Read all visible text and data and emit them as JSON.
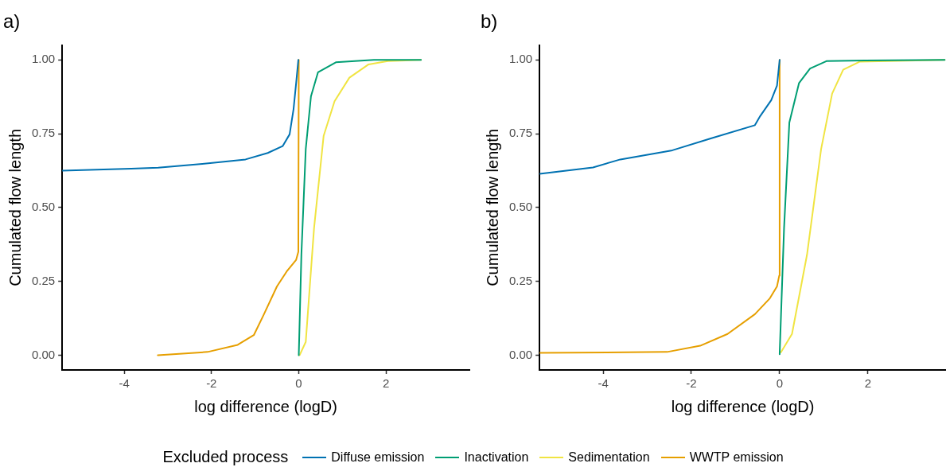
{
  "chart_data": [
    {
      "type": "line",
      "title": "a)",
      "xlabel": "log difference (logD)",
      "ylabel": "Cumulated flow length",
      "legend_title": "Excluded process",
      "legend": "bottom",
      "grid": false,
      "marker": "none",
      "line_style": "solid",
      "xlim": [
        -5.42,
        3.91
      ],
      "xticks": [
        -4,
        -2,
        0,
        2
      ],
      "ylim": [
        -0.05,
        1.05
      ],
      "yticks": [
        {
          "value": 0,
          "label": "0.00"
        },
        {
          "value": 0.25,
          "label": "0.25"
        },
        {
          "value": 0.5,
          "label": "0.50"
        },
        {
          "value": 0.75,
          "label": "0.75"
        },
        {
          "value": 1,
          "label": "1.00"
        }
      ],
      "series": [
        {
          "name": "Diffuse emission",
          "color": "#0072b2",
          "x": [
            -5.42,
            -3.84,
            -3.22,
            -2.21,
            -1.22,
            -0.71,
            -0.37,
            -0.21,
            -0.12,
            -0.06,
            -0.01
          ],
          "values": [
            0.625,
            0.632,
            0.635,
            0.648,
            0.663,
            0.685,
            0.708,
            0.748,
            0.833,
            0.922,
            1.0
          ]
        },
        {
          "name": "Inactivation",
          "color": "#009e73",
          "x": [
            0.0,
            0.06,
            0.16,
            0.28,
            0.44,
            0.85,
            1.72,
            2.8
          ],
          "values": [
            0.0,
            0.34,
            0.698,
            0.877,
            0.958,
            0.992,
            1.0,
            1.0
          ]
        },
        {
          "name": "Sedimentation",
          "color": "#f0e442",
          "x": [
            0.02,
            0.16,
            0.35,
            0.57,
            0.82,
            1.16,
            1.6,
            2.04,
            2.8
          ],
          "values": [
            0.0,
            0.045,
            0.43,
            0.743,
            0.86,
            0.94,
            0.985,
            0.996,
            1.0
          ]
        },
        {
          "name": "WWTP emission",
          "color": "#e69f00",
          "x": [
            -3.23,
            -2.09,
            -1.4,
            -1.03,
            -0.81,
            -0.5,
            -0.28,
            -0.06,
            -0.01,
            0.0
          ],
          "values": [
            0.0,
            0.011,
            0.035,
            0.068,
            0.135,
            0.233,
            0.283,
            0.323,
            0.35,
            1.0
          ]
        }
      ]
    },
    {
      "type": "line",
      "title": "b)",
      "xlabel": "log difference (logD)",
      "ylabel": "Cumulated flow length",
      "grid": false,
      "marker": "none",
      "line_style": "solid",
      "xlim": [
        -5.44,
        3.77
      ],
      "xticks": [
        -4,
        -2,
        0,
        2
      ],
      "ylim": [
        -0.05,
        1.05
      ],
      "yticks": [
        {
          "value": 0,
          "label": "0.00"
        },
        {
          "value": 0.25,
          "label": "0.25"
        },
        {
          "value": 0.5,
          "label": "0.50"
        },
        {
          "value": 0.75,
          "label": "0.75"
        },
        {
          "value": 1,
          "label": "1.00"
        }
      ],
      "series": [
        {
          "color": "#0072b2",
          "x": [
            -5.44,
            -4.23,
            -3.61,
            -2.43,
            -1.56,
            -0.56,
            -0.44,
            -0.19,
            -0.06,
            0.0
          ],
          "values": [
            0.614,
            0.636,
            0.663,
            0.694,
            0.734,
            0.779,
            0.81,
            0.864,
            0.913,
            1.0
          ]
        },
        {
          "color": "#009e73",
          "x": [
            0.0,
            0.1,
            0.22,
            0.44,
            0.69,
            1.06,
            1.93,
            3.74
          ],
          "values": [
            0.003,
            0.43,
            0.788,
            0.922,
            0.971,
            0.996,
            0.998,
            1.0
          ]
        },
        {
          "color": "#f0e442",
          "x": [
            0.03,
            0.28,
            0.62,
            0.94,
            1.19,
            1.44,
            1.81,
            3.74
          ],
          "values": [
            0.01,
            0.072,
            0.34,
            0.698,
            0.886,
            0.967,
            0.994,
            1.0
          ]
        },
        {
          "color": "#e69f00",
          "x": [
            -5.44,
            -2.55,
            -1.8,
            -1.18,
            -0.56,
            -0.22,
            -0.06,
            -0.01,
            0.0
          ],
          "values": [
            0.008,
            0.011,
            0.032,
            0.072,
            0.139,
            0.193,
            0.233,
            0.269,
            1.0
          ]
        }
      ]
    }
  ]
}
